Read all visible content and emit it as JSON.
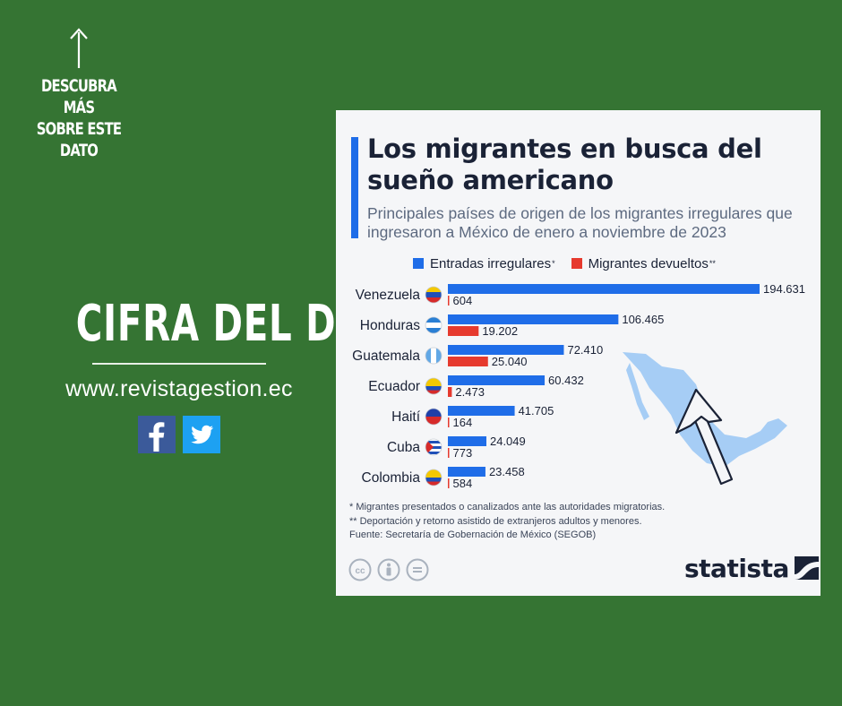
{
  "promo": {
    "discover_lines": [
      "DESCUBRA MÁS",
      "SOBRE ESTE",
      "DATO"
    ],
    "headline": "CIFRA DEL DÍA",
    "website": "www.revistagestion.ec",
    "social_icons": [
      "facebook-icon",
      "twitter-icon"
    ]
  },
  "card": {
    "title": "Los migrantes en busca del sueño americano",
    "subtitle": "Principales países de origen de los migrantes irregulares que ingresaron a México de enero a noviembre de 2023",
    "legend": [
      {
        "label": "Entradas irregulares",
        "mark": "*",
        "color": "#1f6de8"
      },
      {
        "label": "Migrantes devueltos",
        "mark": "**",
        "color": "#e63a2e"
      }
    ],
    "notes": [
      "*   Migrantes presentados o canalizados ante las autoridades migratorias.",
      "** Deportación y retorno asistido de extranjeros adultos y menores.",
      "Fuente: Secretaría de Gobernación de México (SEGOB)"
    ],
    "license_icons": [
      "cc-icon",
      "by-icon",
      "nd-icon"
    ],
    "brand": "statista"
  },
  "chart_data": {
    "type": "bar",
    "orientation": "horizontal",
    "categories": [
      "Venezuela",
      "Honduras",
      "Guatemala",
      "Ecuador",
      "Haití",
      "Cuba",
      "Colombia"
    ],
    "series": [
      {
        "name": "Entradas irregulares",
        "color": "#1f6de8",
        "values": [
          194631,
          106465,
          72410,
          60432,
          41705,
          24049,
          23458
        ],
        "labels": [
          "194.631",
          "106.465",
          "72.410",
          "60.432",
          "41.705",
          "24.049",
          "23.458"
        ]
      },
      {
        "name": "Migrantes devueltos",
        "color": "#e63a2e",
        "values": [
          604,
          19202,
          25040,
          2473,
          164,
          773,
          584
        ],
        "labels": [
          "604",
          "19.202",
          "25.040",
          "2.473",
          "164",
          "773",
          "584"
        ]
      }
    ],
    "flags": [
      "venezuela-flag-icon",
      "honduras-flag-icon",
      "guatemala-flag-icon",
      "ecuador-flag-icon",
      "haiti-flag-icon",
      "cuba-flag-icon",
      "colombia-flag-icon"
    ],
    "xlim": [
      0,
      194631
    ],
    "grid": false,
    "legend_position": "top"
  }
}
